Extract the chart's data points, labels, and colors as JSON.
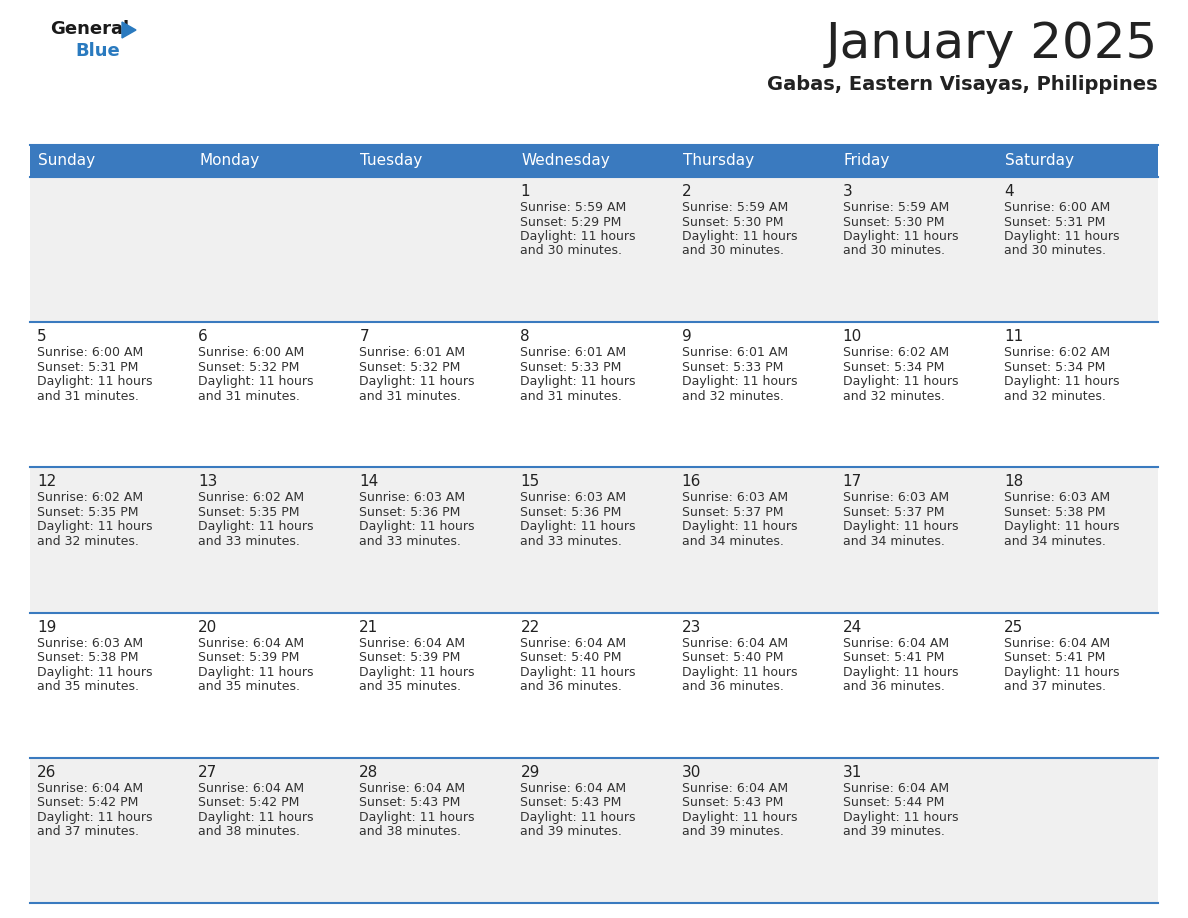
{
  "title": "January 2025",
  "subtitle": "Gabas, Eastern Visayas, Philippines",
  "header_color": "#3a7abf",
  "header_text_color": "#ffffff",
  "days_of_week": [
    "Sunday",
    "Monday",
    "Tuesday",
    "Wednesday",
    "Thursday",
    "Friday",
    "Saturday"
  ],
  "cell_bg_even": "#f0f0f0",
  "cell_bg_odd": "#ffffff",
  "separator_color": "#3a7abf",
  "day_num_color": "#222222",
  "text_color": "#333333",
  "calendar_data": [
    [
      {
        "day": null,
        "sunrise": null,
        "sunset": null,
        "daylight_hours": null,
        "daylight_minutes": null
      },
      {
        "day": null,
        "sunrise": null,
        "sunset": null,
        "daylight_hours": null,
        "daylight_minutes": null
      },
      {
        "day": null,
        "sunrise": null,
        "sunset": null,
        "daylight_hours": null,
        "daylight_minutes": null
      },
      {
        "day": 1,
        "sunrise": "5:59 AM",
        "sunset": "5:29 PM",
        "daylight_hours": 11,
        "daylight_minutes": 30
      },
      {
        "day": 2,
        "sunrise": "5:59 AM",
        "sunset": "5:30 PM",
        "daylight_hours": 11,
        "daylight_minutes": 30
      },
      {
        "day": 3,
        "sunrise": "5:59 AM",
        "sunset": "5:30 PM",
        "daylight_hours": 11,
        "daylight_minutes": 30
      },
      {
        "day": 4,
        "sunrise": "6:00 AM",
        "sunset": "5:31 PM",
        "daylight_hours": 11,
        "daylight_minutes": 30
      }
    ],
    [
      {
        "day": 5,
        "sunrise": "6:00 AM",
        "sunset": "5:31 PM",
        "daylight_hours": 11,
        "daylight_minutes": 31
      },
      {
        "day": 6,
        "sunrise": "6:00 AM",
        "sunset": "5:32 PM",
        "daylight_hours": 11,
        "daylight_minutes": 31
      },
      {
        "day": 7,
        "sunrise": "6:01 AM",
        "sunset": "5:32 PM",
        "daylight_hours": 11,
        "daylight_minutes": 31
      },
      {
        "day": 8,
        "sunrise": "6:01 AM",
        "sunset": "5:33 PM",
        "daylight_hours": 11,
        "daylight_minutes": 31
      },
      {
        "day": 9,
        "sunrise": "6:01 AM",
        "sunset": "5:33 PM",
        "daylight_hours": 11,
        "daylight_minutes": 32
      },
      {
        "day": 10,
        "sunrise": "6:02 AM",
        "sunset": "5:34 PM",
        "daylight_hours": 11,
        "daylight_minutes": 32
      },
      {
        "day": 11,
        "sunrise": "6:02 AM",
        "sunset": "5:34 PM",
        "daylight_hours": 11,
        "daylight_minutes": 32
      }
    ],
    [
      {
        "day": 12,
        "sunrise": "6:02 AM",
        "sunset": "5:35 PM",
        "daylight_hours": 11,
        "daylight_minutes": 32
      },
      {
        "day": 13,
        "sunrise": "6:02 AM",
        "sunset": "5:35 PM",
        "daylight_hours": 11,
        "daylight_minutes": 33
      },
      {
        "day": 14,
        "sunrise": "6:03 AM",
        "sunset": "5:36 PM",
        "daylight_hours": 11,
        "daylight_minutes": 33
      },
      {
        "day": 15,
        "sunrise": "6:03 AM",
        "sunset": "5:36 PM",
        "daylight_hours": 11,
        "daylight_minutes": 33
      },
      {
        "day": 16,
        "sunrise": "6:03 AM",
        "sunset": "5:37 PM",
        "daylight_hours": 11,
        "daylight_minutes": 34
      },
      {
        "day": 17,
        "sunrise": "6:03 AM",
        "sunset": "5:37 PM",
        "daylight_hours": 11,
        "daylight_minutes": 34
      },
      {
        "day": 18,
        "sunrise": "6:03 AM",
        "sunset": "5:38 PM",
        "daylight_hours": 11,
        "daylight_minutes": 34
      }
    ],
    [
      {
        "day": 19,
        "sunrise": "6:03 AM",
        "sunset": "5:38 PM",
        "daylight_hours": 11,
        "daylight_minutes": 35
      },
      {
        "day": 20,
        "sunrise": "6:04 AM",
        "sunset": "5:39 PM",
        "daylight_hours": 11,
        "daylight_minutes": 35
      },
      {
        "day": 21,
        "sunrise": "6:04 AM",
        "sunset": "5:39 PM",
        "daylight_hours": 11,
        "daylight_minutes": 35
      },
      {
        "day": 22,
        "sunrise": "6:04 AM",
        "sunset": "5:40 PM",
        "daylight_hours": 11,
        "daylight_minutes": 36
      },
      {
        "day": 23,
        "sunrise": "6:04 AM",
        "sunset": "5:40 PM",
        "daylight_hours": 11,
        "daylight_minutes": 36
      },
      {
        "day": 24,
        "sunrise": "6:04 AM",
        "sunset": "5:41 PM",
        "daylight_hours": 11,
        "daylight_minutes": 36
      },
      {
        "day": 25,
        "sunrise": "6:04 AM",
        "sunset": "5:41 PM",
        "daylight_hours": 11,
        "daylight_minutes": 37
      }
    ],
    [
      {
        "day": 26,
        "sunrise": "6:04 AM",
        "sunset": "5:42 PM",
        "daylight_hours": 11,
        "daylight_minutes": 37
      },
      {
        "day": 27,
        "sunrise": "6:04 AM",
        "sunset": "5:42 PM",
        "daylight_hours": 11,
        "daylight_minutes": 38
      },
      {
        "day": 28,
        "sunrise": "6:04 AM",
        "sunset": "5:43 PM",
        "daylight_hours": 11,
        "daylight_minutes": 38
      },
      {
        "day": 29,
        "sunrise": "6:04 AM",
        "sunset": "5:43 PM",
        "daylight_hours": 11,
        "daylight_minutes": 39
      },
      {
        "day": 30,
        "sunrise": "6:04 AM",
        "sunset": "5:43 PM",
        "daylight_hours": 11,
        "daylight_minutes": 39
      },
      {
        "day": 31,
        "sunrise": "6:04 AM",
        "sunset": "5:44 PM",
        "daylight_hours": 11,
        "daylight_minutes": 39
      },
      {
        "day": null,
        "sunrise": null,
        "sunset": null,
        "daylight_hours": null,
        "daylight_minutes": null
      }
    ]
  ],
  "logo_text_general": "General",
  "logo_text_blue": "Blue",
  "logo_color_general": "#1a1a1a",
  "logo_color_blue": "#2a7abf",
  "logo_triangle_color": "#2a7abf",
  "title_fontsize": 36,
  "subtitle_fontsize": 14,
  "header_fontsize": 11,
  "day_num_fontsize": 11,
  "cell_text_fontsize": 9
}
